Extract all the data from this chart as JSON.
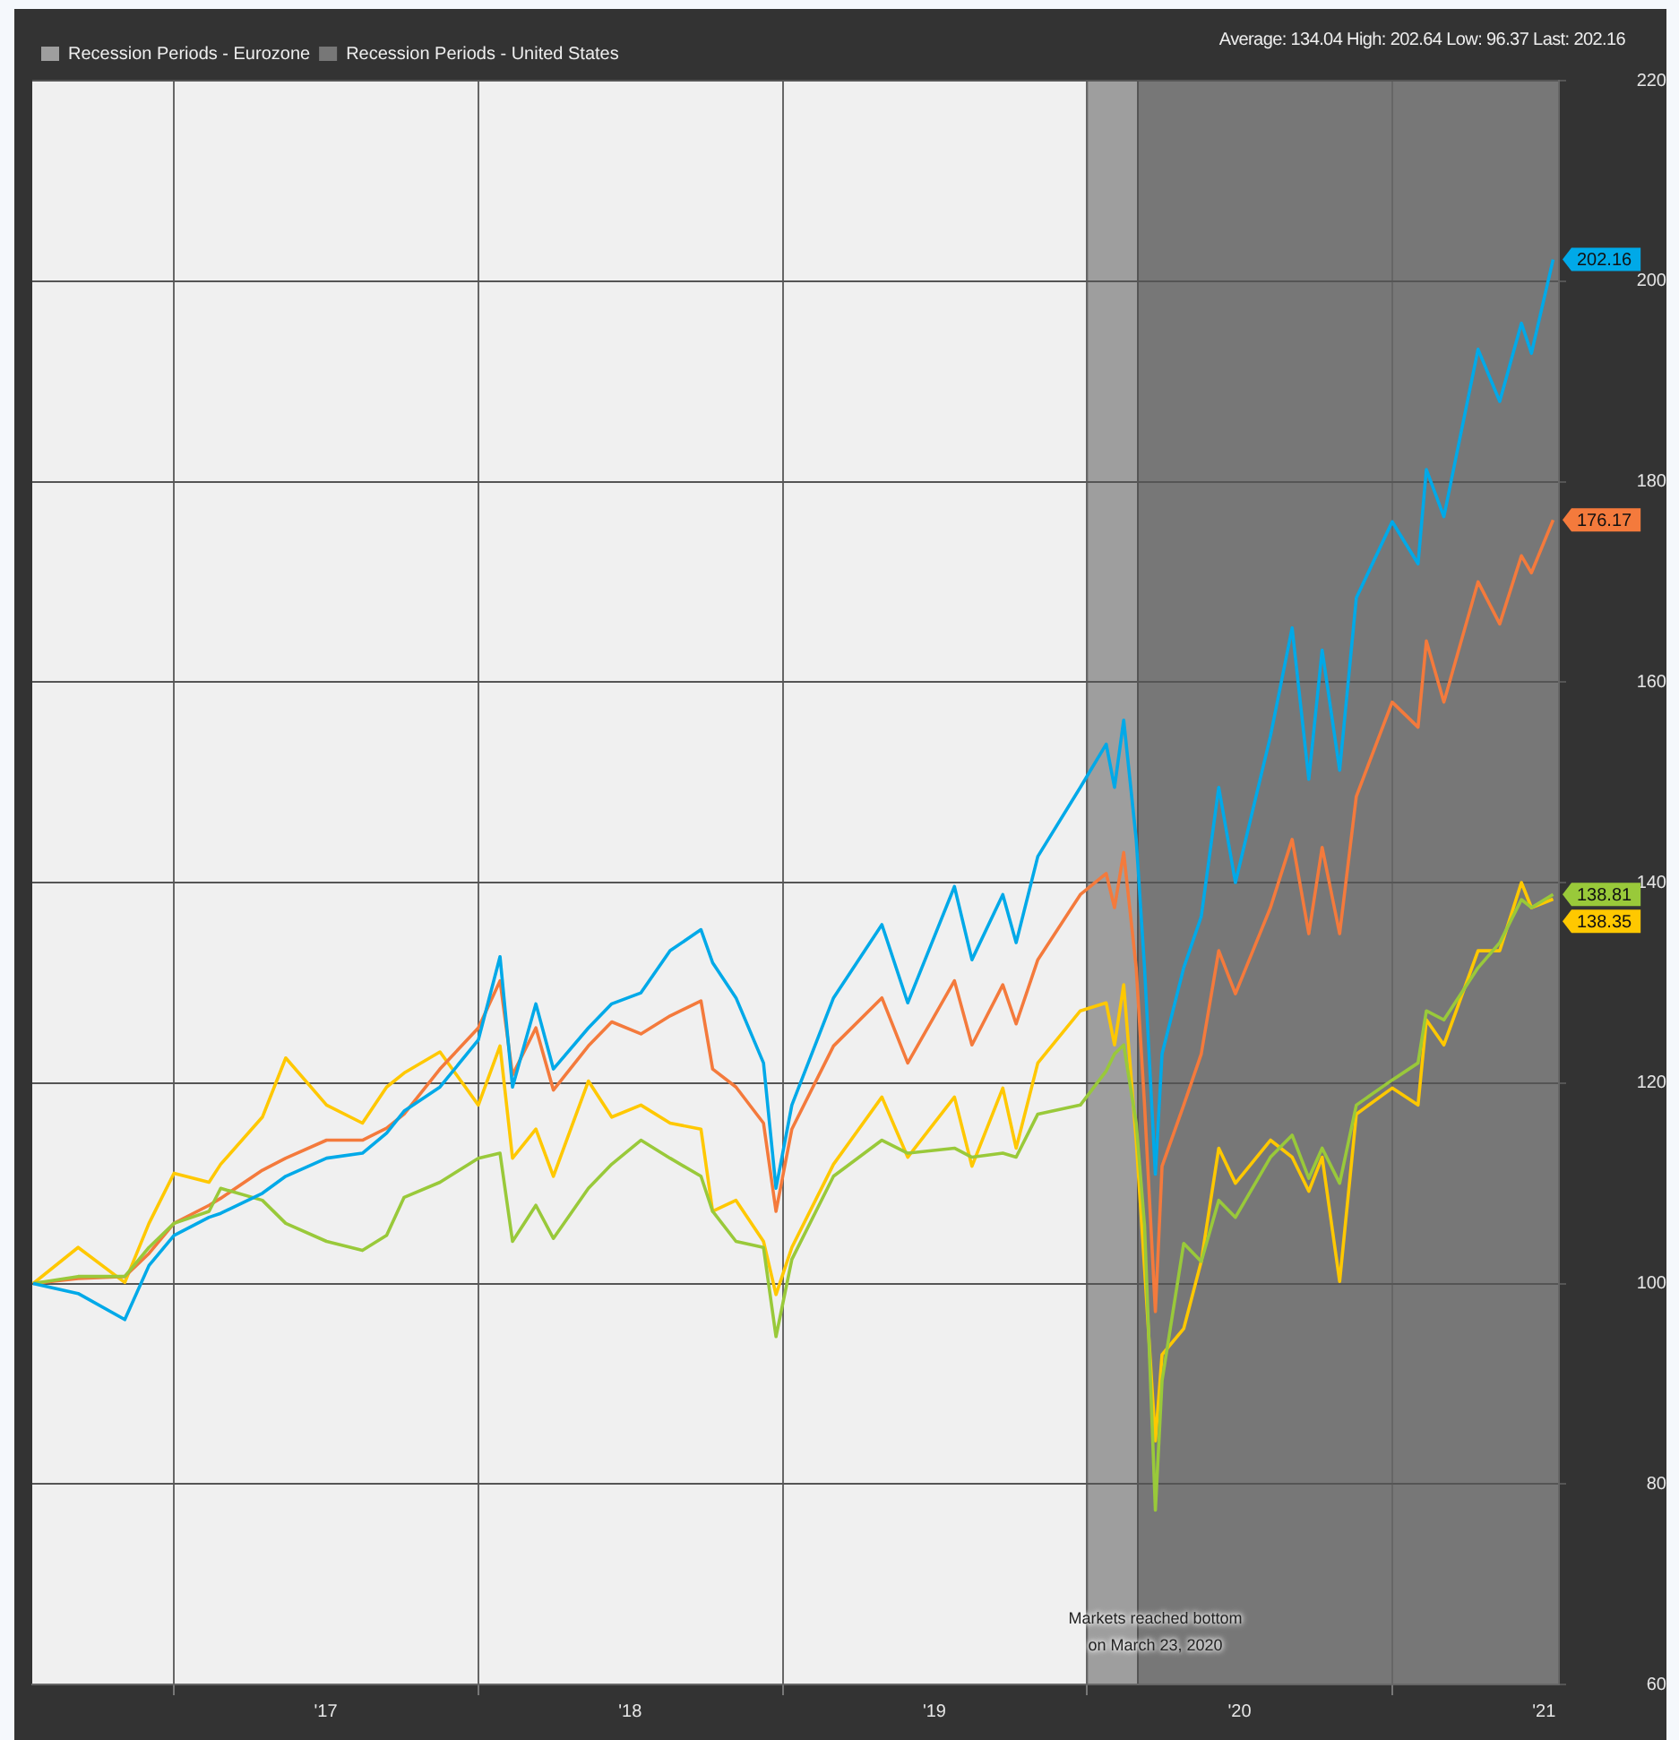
{
  "chart_data": {
    "type": "line",
    "x": [
      "2016-07-16",
      "2016-09-08",
      "2016-11-03",
      "2016-12-02",
      "2017-01-01",
      "2017-02-12",
      "2017-02-26",
      "2017-04-17",
      "2017-05-15",
      "2017-07-03",
      "2017-08-15",
      "2017-09-13",
      "2017-10-04",
      "2017-11-16",
      "2018-01-01",
      "2018-01-27",
      "2018-02-11",
      "2018-03-11",
      "2018-04-01",
      "2018-05-13",
      "2018-06-10",
      "2018-07-15",
      "2018-08-19",
      "2018-09-25",
      "2018-10-09",
      "2018-11-06",
      "2018-12-09",
      "2018-12-24",
      "2019-01-12",
      "2019-03-03",
      "2019-04-30",
      "2019-05-31",
      "2019-07-26",
      "2019-08-16",
      "2019-09-22",
      "2019-10-08",
      "2019-11-03",
      "2019-12-24",
      "2020-01-24",
      "2020-02-03",
      "2020-02-14",
      "2020-02-29",
      "2020-03-10",
      "2020-03-23",
      "2020-03-31",
      "2020-04-26",
      "2020-05-17",
      "2020-06-07",
      "2020-06-27",
      "2020-08-08",
      "2020-09-03",
      "2020-09-23",
      "2020-10-09",
      "2020-10-30",
      "2020-11-19",
      "2021-01-01",
      "2021-02-01",
      "2021-02-11",
      "2021-03-04",
      "2021-04-14",
      "2021-05-10",
      "2021-06-05",
      "2021-06-17",
      "2021-07-13"
    ],
    "series": [
      {
        "color": "#00a9e8",
        "values": [
          100,
          99,
          96.4,
          101.8,
          104.8,
          106.6,
          107,
          109,
          110.7,
          112.5,
          113,
          115,
          117.2,
          119.6,
          124.3,
          132.6,
          119.6,
          127.9,
          121.4,
          125.5,
          127.9,
          129,
          133.2,
          135.3,
          132,
          128.5,
          122,
          109.5,
          117.8,
          128.5,
          135.8,
          128,
          139.6,
          132.3,
          138.8,
          134,
          142.6,
          149.5,
          153.8,
          149.5,
          156.2,
          144.3,
          131.5,
          110.9,
          122.9,
          131.5,
          136.6,
          149.5,
          140,
          154.6,
          165.4,
          150.3,
          163.2,
          151.2,
          168.4,
          176,
          171.8,
          181.2,
          176.5,
          193.2,
          188,
          195.8,
          192.8,
          202.16
        ]
      },
      {
        "color": "#99c93a",
        "values": [
          100,
          100.7,
          100.7,
          103.6,
          106,
          107.2,
          109.5,
          108.3,
          106,
          104.2,
          103.3,
          104.8,
          108.6,
          110.1,
          112.5,
          113,
          104.2,
          107.8,
          104.5,
          109.5,
          111.9,
          114.3,
          112.5,
          110.7,
          107.2,
          104.2,
          103.6,
          94.7,
          102.4,
          110.7,
          114.3,
          113,
          113.5,
          112.6,
          113,
          112.6,
          116.9,
          117.8,
          121.2,
          122.9,
          123.8,
          116,
          105.8,
          77.4,
          90.3,
          104,
          102.2,
          108.3,
          106.6,
          112.6,
          114.8,
          110.5,
          113.5,
          110,
          117.8,
          120.3,
          122,
          127.2,
          126.3,
          131.5,
          134,
          138.3,
          137.5,
          138.81
        ]
      },
      {
        "color": "#f47a3c",
        "values": [
          100,
          100.5,
          100.7,
          103,
          106,
          107.8,
          108.5,
          111.3,
          112.5,
          114.3,
          114.3,
          115.5,
          116.9,
          121.4,
          125.5,
          130.2,
          120.8,
          125.5,
          119.3,
          123.7,
          126.1,
          124.9,
          126.7,
          128.2,
          121.4,
          119.6,
          116,
          107.2,
          115.4,
          123.7,
          128.5,
          122,
          130.2,
          123.8,
          129.8,
          125.9,
          132.3,
          138.8,
          140.9,
          137.5,
          143,
          131.5,
          117.8,
          97.2,
          111.7,
          117.8,
          122.9,
          133.2,
          128.9,
          137.5,
          144.3,
          134.9,
          143.5,
          134.9,
          148.6,
          158,
          155.5,
          164.1,
          158,
          170,
          165.8,
          172.6,
          170.9,
          176.17
        ]
      },
      {
        "color": "#ffc800",
        "values": [
          100,
          103.6,
          100.1,
          106,
          111,
          110.1,
          111.9,
          116.6,
          122.5,
          117.8,
          116,
          119.6,
          121,
          123.1,
          117.8,
          123.7,
          112.5,
          115.4,
          110.7,
          120.2,
          116.6,
          117.8,
          116,
          115.4,
          107.2,
          108.3,
          104.2,
          98.9,
          103.6,
          111.9,
          118.6,
          112.6,
          118.6,
          111.7,
          119.5,
          113.5,
          122,
          127.2,
          128,
          123.8,
          129.8,
          114.3,
          101.5,
          84.3,
          92.9,
          95.5,
          102.2,
          113.5,
          110,
          114.3,
          112.6,
          109.2,
          112.6,
          100.2,
          116.9,
          119.5,
          117.8,
          126.3,
          123.8,
          133.2,
          133.2,
          140,
          137.5,
          138.35
        ]
      }
    ],
    "xlim": [
      "2016-07-15",
      "2021-07-20"
    ],
    "xticks": [
      {
        "value": "2017-01-01",
        "label": null
      },
      {
        "value": "2017-07-02",
        "label": "'17"
      },
      {
        "value": "2018-01-01",
        "label": null
      },
      {
        "value": "2018-07-02",
        "label": "'18"
      },
      {
        "value": "2019-01-01",
        "label": null
      },
      {
        "value": "2019-07-02",
        "label": "'19"
      },
      {
        "value": "2020-01-01",
        "label": null
      },
      {
        "value": "2020-07-02",
        "label": "'20"
      },
      {
        "value": "2021-01-01",
        "label": null
      },
      {
        "value": "2021-07-02",
        "label": "'21"
      }
    ],
    "ylim": [
      60,
      220
    ],
    "yticks": [
      60,
      80,
      100,
      120,
      140,
      160,
      180,
      200,
      220
    ],
    "bands": [
      {
        "axis": "x",
        "from": "2020-01-01",
        "to": "2021-07-20",
        "label": "Recession Periods - Eurozone",
        "color": "#9e9e9e"
      },
      {
        "axis": "x",
        "from": "2020-03-02",
        "to": "2021-07-20",
        "label": "Recession Periods - United States",
        "color": "#777777"
      }
    ],
    "annotations": [
      "Average: 134.04 High: 202.64 Low: 96.37 Last: 202.16",
      "Markets reached bottom on March 23, 2020",
      {
        "text": "202.16",
        "x": "2021-07-13",
        "y": 202.16
      },
      {
        "text": "176.17",
        "x": "2021-07-13",
        "y": 176.17
      },
      {
        "text": "138.81",
        "x": "2021-07-13",
        "y": 138.81
      },
      {
        "text": "138.35",
        "x": "2021-07-13",
        "y": 138.35
      }
    ],
    "grid": true,
    "legend": "top left",
    "marker": "none",
    "line_style": "solid"
  }
}
